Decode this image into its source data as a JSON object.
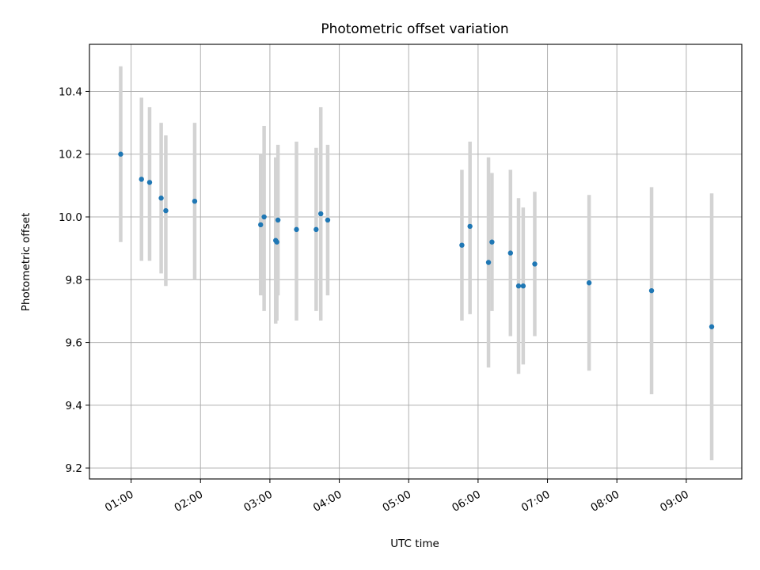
{
  "chart_data": {
    "type": "scatter",
    "title": "Photometric offset variation",
    "xlabel": "UTC time",
    "ylabel": "Photometric offset",
    "x_tick_labels": [
      "01:00",
      "02:00",
      "03:00",
      "04:00",
      "05:00",
      "06:00",
      "07:00",
      "08:00",
      "09:00"
    ],
    "x_tick_values": [
      "01:00",
      "02:00",
      "03:00",
      "04:00",
      "05:00",
      "06:00",
      "07:00",
      "08:00",
      "09:00"
    ],
    "y_tick_values": [
      9.2,
      9.4,
      9.6,
      9.8,
      10.0,
      10.2,
      10.4
    ],
    "y_tick_labels": [
      "9.2",
      "9.4",
      "9.6",
      "9.8",
      "10.0",
      "10.2",
      "10.4"
    ],
    "xlim": [
      "00:24",
      "09:48"
    ],
    "ylim": [
      9.165,
      10.55
    ],
    "grid": true,
    "marker_color": "#1f77b4",
    "errorbar_color": "#d3d3d3",
    "points": [
      {
        "x": "00:51",
        "y": 10.2,
        "yerr_low": 9.92,
        "yerr_high": 10.48
      },
      {
        "x": "01:09",
        "y": 10.12,
        "yerr_low": 9.86,
        "yerr_high": 10.38
      },
      {
        "x": "01:16",
        "y": 10.11,
        "yerr_low": 9.86,
        "yerr_high": 10.35
      },
      {
        "x": "01:26",
        "y": 10.06,
        "yerr_low": 9.82,
        "yerr_high": 10.3
      },
      {
        "x": "01:30",
        "y": 10.02,
        "yerr_low": 9.78,
        "yerr_high": 10.26
      },
      {
        "x": "01:55",
        "y": 10.05,
        "yerr_low": 9.8,
        "yerr_high": 10.3
      },
      {
        "x": "02:52",
        "y": 9.975,
        "yerr_low": 9.75,
        "yerr_high": 10.2
      },
      {
        "x": "02:55",
        "y": 10.0,
        "yerr_low": 9.7,
        "yerr_high": 10.29
      },
      {
        "x": "03:05",
        "y": 9.925,
        "yerr_low": 9.66,
        "yerr_high": 10.19
      },
      {
        "x": "03:06",
        "y": 9.92,
        "yerr_low": 9.67,
        "yerr_high": 10.16
      },
      {
        "x": "03:07",
        "y": 9.99,
        "yerr_low": 9.75,
        "yerr_high": 10.23
      },
      {
        "x": "03:23",
        "y": 9.96,
        "yerr_low": 9.67,
        "yerr_high": 10.24
      },
      {
        "x": "03:40",
        "y": 9.96,
        "yerr_low": 9.7,
        "yerr_high": 10.22
      },
      {
        "x": "03:44",
        "y": 10.01,
        "yerr_low": 9.67,
        "yerr_high": 10.35
      },
      {
        "x": "03:50",
        "y": 9.99,
        "yerr_low": 9.75,
        "yerr_high": 10.23
      },
      {
        "x": "05:46",
        "y": 9.91,
        "yerr_low": 9.67,
        "yerr_high": 10.15
      },
      {
        "x": "05:53",
        "y": 9.97,
        "yerr_low": 9.69,
        "yerr_high": 10.24
      },
      {
        "x": "06:09",
        "y": 9.855,
        "yerr_low": 9.52,
        "yerr_high": 10.19
      },
      {
        "x": "06:12",
        "y": 9.92,
        "yerr_low": 9.7,
        "yerr_high": 10.14
      },
      {
        "x": "06:28",
        "y": 9.885,
        "yerr_low": 9.62,
        "yerr_high": 10.15
      },
      {
        "x": "06:35",
        "y": 9.78,
        "yerr_low": 9.5,
        "yerr_high": 10.06
      },
      {
        "x": "06:39",
        "y": 9.78,
        "yerr_low": 9.53,
        "yerr_high": 10.03
      },
      {
        "x": "06:49",
        "y": 9.85,
        "yerr_low": 9.62,
        "yerr_high": 10.08
      },
      {
        "x": "07:36",
        "y": 9.79,
        "yerr_low": 9.51,
        "yerr_high": 10.07
      },
      {
        "x": "08:30",
        "y": 9.765,
        "yerr_low": 9.435,
        "yerr_high": 10.095
      },
      {
        "x": "09:22",
        "y": 9.65,
        "yerr_low": 9.225,
        "yerr_high": 10.075
      }
    ]
  }
}
